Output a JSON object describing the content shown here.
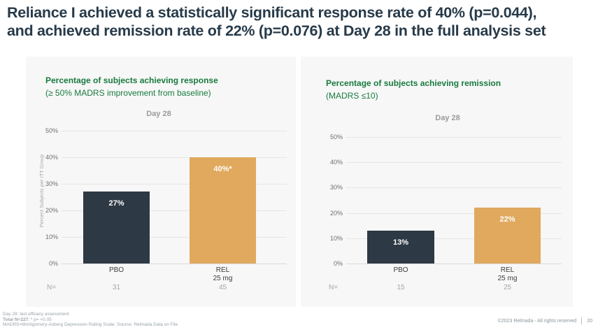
{
  "slide": {
    "title_line1": "Reliance I achieved a statistically significant response rate of 40% (p=0.044),",
    "title_line2": "and achieved remission rate of 22% (p=0.076) at Day 28 in the full analysis set"
  },
  "colors": {
    "title_navy": "#273a49",
    "accent_green": "#187a3e",
    "bar_dark": "#2d3944",
    "bar_orange": "#e0a95e"
  },
  "chart_data": [
    {
      "type": "bar",
      "title": "Percentage of subjects achieving response",
      "subtitle": "(≥ 50% MADRS improvement from baseline)",
      "period_label": "Day 28",
      "ylabel": "Percent Subjects per ITT Group",
      "ylim": [
        0,
        50
      ],
      "yticks": [
        "0%",
        "10%",
        "20%",
        "30%",
        "40%",
        "50%"
      ],
      "grid": true,
      "categories": [
        "PBO",
        "REL 25 mg"
      ],
      "x_label_lines": [
        [
          "PBO",
          ""
        ],
        [
          "REL",
          "25 mg"
        ]
      ],
      "values": [
        27,
        40
      ],
      "bar_labels": [
        "27%",
        "40%*"
      ],
      "bar_colors": [
        "#2d3944",
        "#e0a95e"
      ],
      "n_label": "N=",
      "n_values": [
        "31",
        "45"
      ]
    },
    {
      "type": "bar",
      "title": "Percentage of subjects achieving remission",
      "subtitle": "(MADRS ≤10)",
      "period_label": "Day 28",
      "ylabel": "",
      "ylim": [
        0,
        50
      ],
      "yticks": [
        "0%",
        "10%",
        "20%",
        "30%",
        "40%",
        "50%"
      ],
      "grid": true,
      "categories": [
        "PBO",
        "REL 25 mg"
      ],
      "x_label_lines": [
        [
          "PBO",
          ""
        ],
        [
          "REL",
          "25 mg"
        ]
      ],
      "values": [
        13,
        22
      ],
      "bar_labels": [
        "13%",
        "22%"
      ],
      "bar_colors": [
        "#2d3944",
        "#e0a95e"
      ],
      "n_label": "N=",
      "n_values": [
        "15",
        "25"
      ]
    }
  ],
  "footer": {
    "line1": "Day 28: last efficacy assessment",
    "line2_bold": "Total N=227",
    "line2_rest": "; * p= <0.05",
    "line3": "MADRS=Montgomery-Asberg Depression Rating Scale; Source: Relmada Data on File",
    "copyright": "©2023 Relmada - All rights reserved",
    "page_number": "20"
  }
}
